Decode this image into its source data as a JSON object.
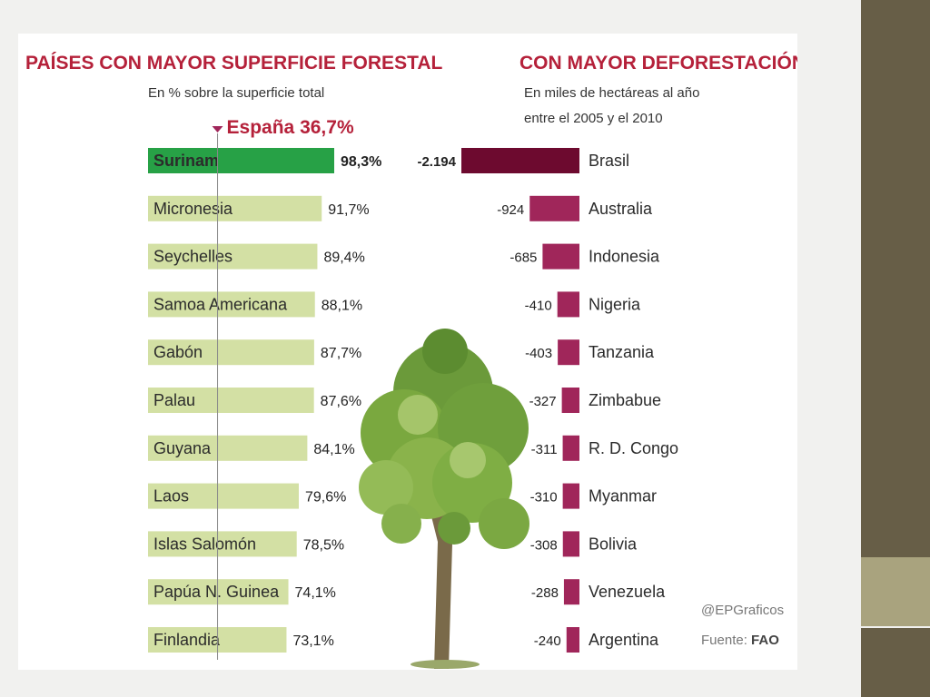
{
  "chart_data": [
    {
      "type": "bar",
      "title": "PAÍSES CON MAYOR SUPERFICIE FORESTAL",
      "subtitle": "En % sobre la superficie total",
      "reference": {
        "label": "España 36,7%",
        "value": 36.7
      },
      "categories": [
        "Surinam",
        "Micronesia",
        "Seychelles",
        "Samoa Americana",
        "Gabón",
        "Palau",
        "Guyana",
        "Laos",
        "Islas Salomón",
        "Papúa N. Guinea",
        "Finlandia"
      ],
      "values": [
        98.3,
        91.7,
        89.4,
        88.1,
        87.7,
        87.6,
        84.1,
        79.6,
        78.5,
        74.1,
        73.1
      ],
      "value_labels": [
        "98,3%",
        "91,7%",
        "89,4%",
        "88,1%",
        "87,7%",
        "87,6%",
        "84,1%",
        "79,6%",
        "78,5%",
        "74,1%",
        "73,1%"
      ],
      "highlight": "Surinam",
      "colors": {
        "bar": "#d3e0a4",
        "highlight": "#27a146",
        "highlight_label": "#27a146",
        "reference_marker": "#a0265a"
      }
    },
    {
      "type": "bar",
      "title": "CON MAYOR DEFORESTACIÓN",
      "subtitle_lines": [
        "En miles de hectáreas al año",
        "entre el 2005 y el 2010"
      ],
      "categories": [
        "Brasil",
        "Australia",
        "Indonesia",
        "Nigeria",
        "Tanzania",
        "Zimbabue",
        "R. D. Congo",
        "Myanmar",
        "Bolivia",
        "Venezuela",
        "Argentina"
      ],
      "values": [
        -2194,
        -924,
        -685,
        -410,
        -403,
        -327,
        -311,
        -310,
        -308,
        -288,
        -240
      ],
      "value_labels": [
        "-2.194",
        "-924",
        "-685",
        "-410",
        "-403",
        "-327",
        "-311",
        "-310",
        "-308",
        "-288",
        "-240"
      ],
      "highlight": "Brasil",
      "colors": {
        "bar": "#a0265a",
        "highlight": "#6d0a2f",
        "highlight_label": "#8a1d3e",
        "title": "#b5213a"
      }
    }
  ],
  "credits": {
    "author": "@EPGraficos",
    "source_prefix": "Fuente:",
    "source": "FAO"
  },
  "icons": {
    "center_image": "tree-icon"
  }
}
